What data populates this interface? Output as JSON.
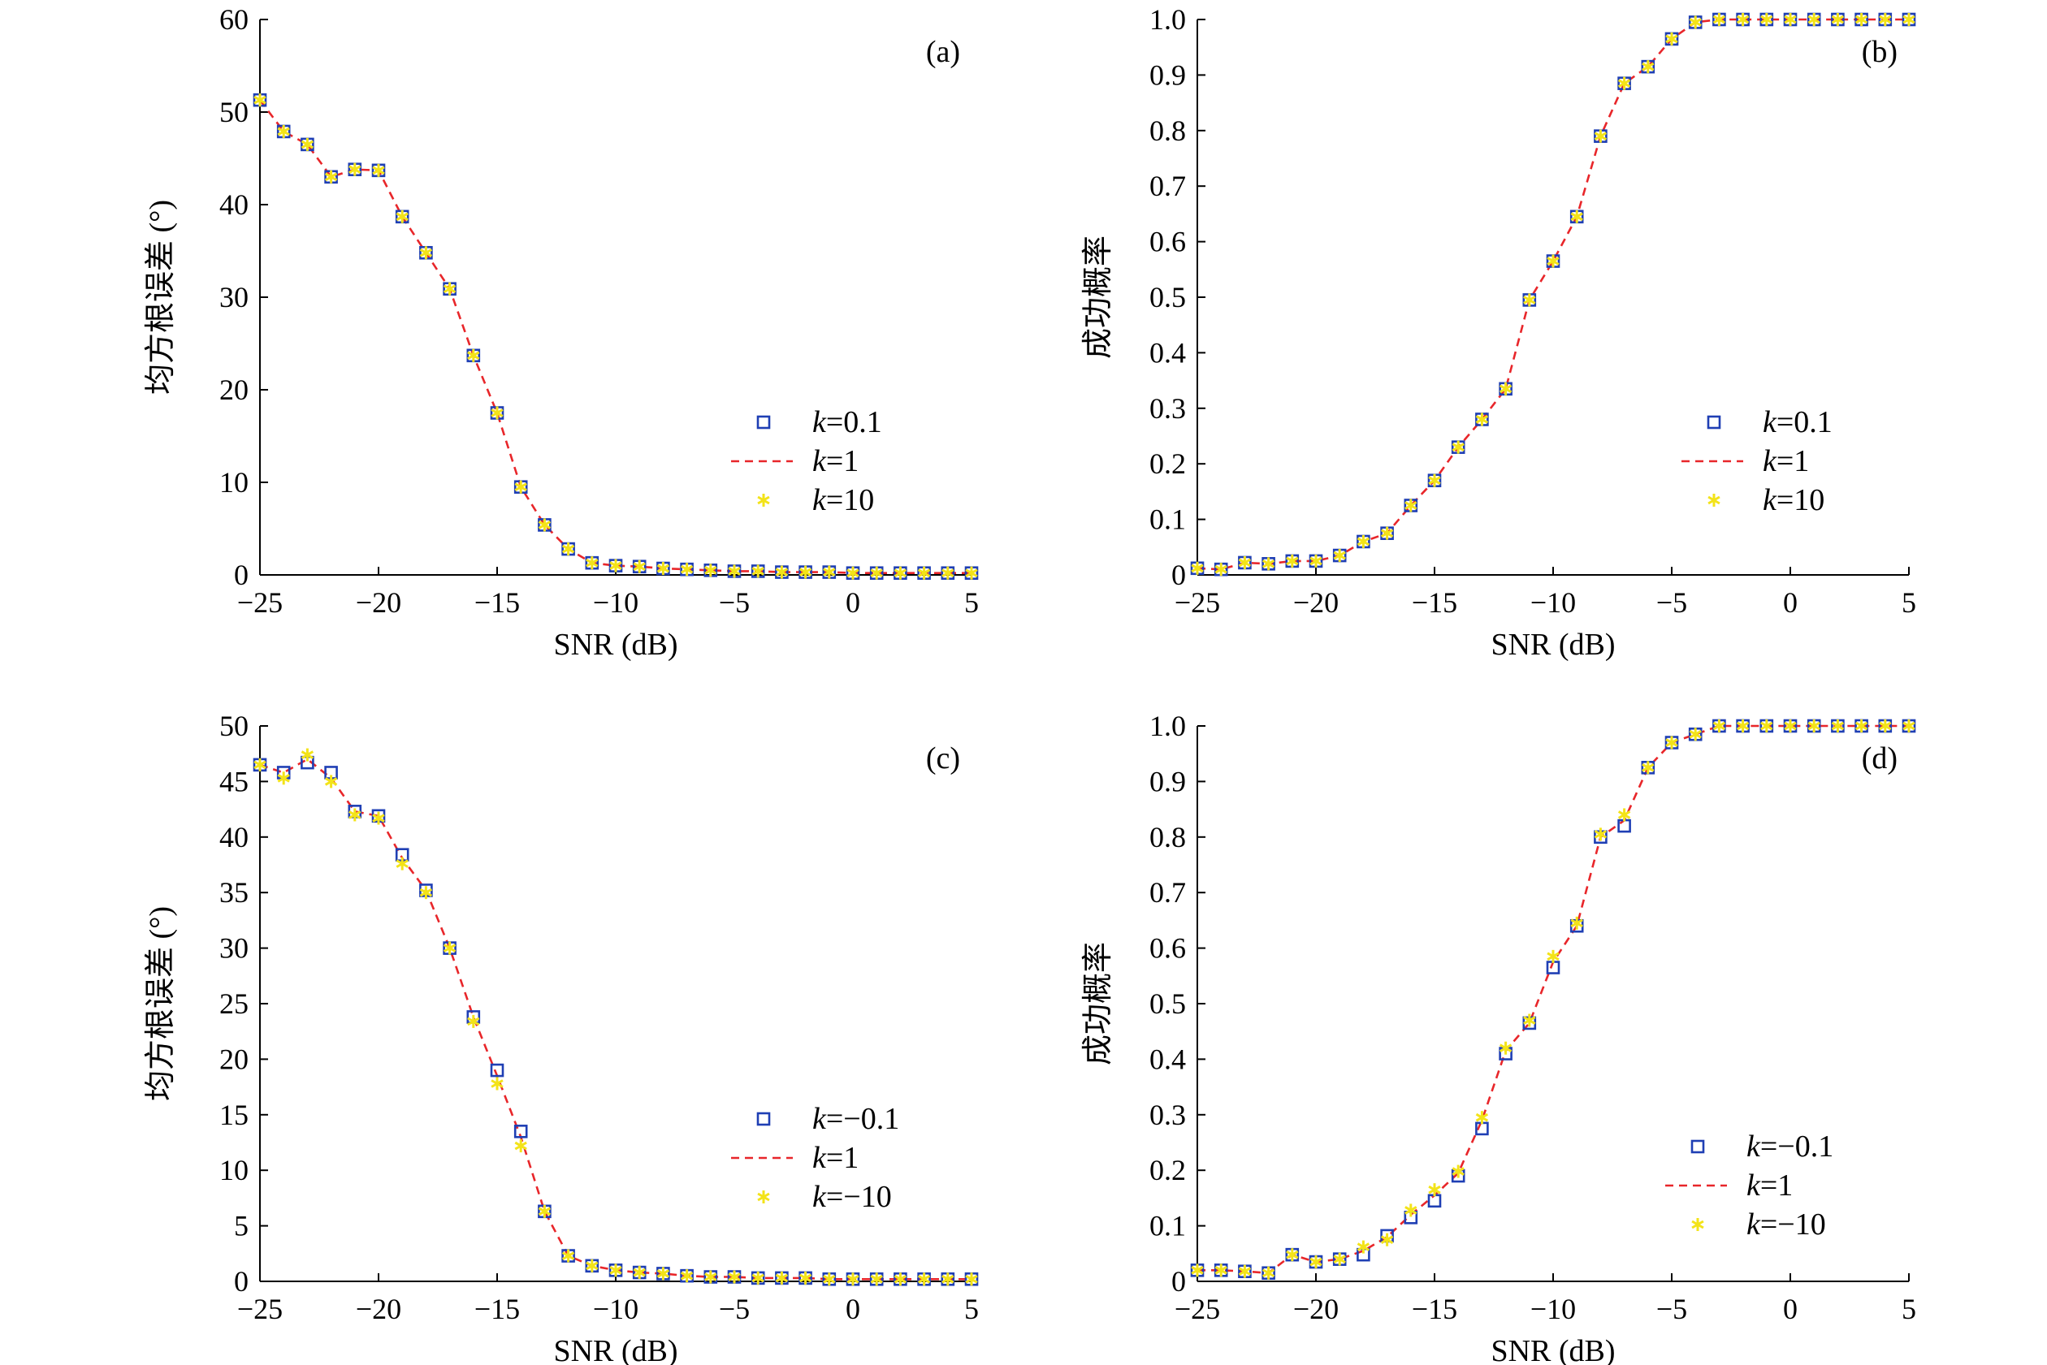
{
  "figure": {
    "background": "#ffffff",
    "colors": {
      "series_kpos01": "#1f3fb4",
      "series_k1": "#e8262a",
      "series_k10": "#f3e319",
      "axis": "#000000"
    }
  },
  "chart_data": [
    {
      "id": "a",
      "panel_label": "(a)",
      "type": "line",
      "xlabel": "SNR (dB)",
      "ylabel": "均方根误差 (°)",
      "xlim": [
        -25,
        5
      ],
      "ylim": [
        0,
        60
      ],
      "xticks": [
        -25,
        -20,
        -15,
        -10,
        -5,
        0,
        5
      ],
      "yticks": [
        0,
        10,
        20,
        30,
        40,
        50,
        60
      ],
      "xtick_labels": [
        "−25",
        "−20",
        "−15",
        "−10",
        "−5",
        "0",
        "5"
      ],
      "ytick_labels": [
        "0",
        "10",
        "20",
        "30",
        "40",
        "50",
        "60"
      ],
      "legend_position": "right",
      "x": [
        -25,
        -24,
        -23,
        -22,
        -21,
        -20,
        -19,
        -18,
        -17,
        -16,
        -15,
        -14,
        -13,
        -12,
        -11,
        -10,
        -9,
        -8,
        -7,
        -6,
        -5,
        -4,
        -3,
        -2,
        -1,
        0,
        1,
        2,
        3,
        4,
        5
      ],
      "series": [
        {
          "label_pre": "k",
          "label_post": "=0.1",
          "marker": "square",
          "color": "#1f3fb4",
          "values": [
            51.3,
            47.9,
            46.5,
            43.0,
            43.8,
            43.7,
            38.7,
            34.8,
            30.9,
            23.7,
            17.5,
            9.5,
            5.4,
            2.8,
            1.3,
            1.0,
            0.9,
            0.7,
            0.6,
            0.5,
            0.4,
            0.4,
            0.3,
            0.3,
            0.3,
            0.2,
            0.2,
            0.2,
            0.2,
            0.2,
            0.2
          ]
        },
        {
          "label_pre": "k",
          "label_post": "=1",
          "marker": "dashed-line",
          "color": "#e8262a",
          "values": [
            51.3,
            47.9,
            46.5,
            43.0,
            43.8,
            43.7,
            38.7,
            34.8,
            30.9,
            23.7,
            17.5,
            9.5,
            5.4,
            2.8,
            1.3,
            1.0,
            0.9,
            0.7,
            0.6,
            0.5,
            0.4,
            0.4,
            0.3,
            0.3,
            0.3,
            0.2,
            0.2,
            0.2,
            0.2,
            0.2,
            0.2
          ]
        },
        {
          "label_pre": "k",
          "label_post": "=10",
          "marker": "asterisk",
          "color": "#f3e319",
          "values": [
            51.3,
            47.9,
            46.5,
            43.0,
            43.8,
            43.7,
            38.7,
            34.8,
            30.9,
            23.7,
            17.5,
            9.5,
            5.4,
            2.8,
            1.3,
            1.0,
            0.9,
            0.7,
            0.6,
            0.5,
            0.4,
            0.4,
            0.3,
            0.3,
            0.3,
            0.2,
            0.2,
            0.2,
            0.2,
            0.2,
            0.2
          ]
        }
      ]
    },
    {
      "id": "b",
      "panel_label": "(b)",
      "type": "line",
      "xlabel": "SNR (dB)",
      "ylabel": "成功概率",
      "xlim": [
        -25,
        5
      ],
      "ylim": [
        0,
        1.0
      ],
      "xticks": [
        -25,
        -20,
        -15,
        -10,
        -5,
        0,
        5
      ],
      "yticks": [
        0,
        0.1,
        0.2,
        0.3,
        0.4,
        0.5,
        0.6,
        0.7,
        0.8,
        0.9,
        1.0
      ],
      "xtick_labels": [
        "−25",
        "−20",
        "−15",
        "−10",
        "−5",
        "0",
        "5"
      ],
      "ytick_labels": [
        "0",
        "0.1",
        "0.2",
        "0.3",
        "0.4",
        "0.5",
        "0.6",
        "0.7",
        "0.8",
        "0.9",
        "1.0"
      ],
      "legend_position": "right",
      "x": [
        -25,
        -24,
        -23,
        -22,
        -21,
        -20,
        -19,
        -18,
        -17,
        -16,
        -15,
        -14,
        -13,
        -12,
        -11,
        -10,
        -9,
        -8,
        -7,
        -6,
        -5,
        -4,
        -3,
        -2,
        -1,
        0,
        1,
        2,
        3,
        4,
        5
      ],
      "series": [
        {
          "label_pre": "k",
          "label_post": "=0.1",
          "marker": "square",
          "color": "#1f3fb4",
          "values": [
            0.012,
            0.01,
            0.022,
            0.02,
            0.025,
            0.025,
            0.035,
            0.06,
            0.075,
            0.125,
            0.17,
            0.23,
            0.28,
            0.335,
            0.495,
            0.565,
            0.645,
            0.79,
            0.885,
            0.915,
            0.965,
            0.995,
            1.0,
            1.0,
            1.0,
            1.0,
            1.0,
            1.0,
            1.0,
            1.0,
            1.0
          ]
        },
        {
          "label_pre": "k",
          "label_post": "=1",
          "marker": "dashed-line",
          "color": "#e8262a",
          "values": [
            0.012,
            0.01,
            0.022,
            0.02,
            0.025,
            0.025,
            0.035,
            0.06,
            0.075,
            0.125,
            0.17,
            0.23,
            0.28,
            0.335,
            0.495,
            0.565,
            0.645,
            0.79,
            0.885,
            0.915,
            0.965,
            0.995,
            1.0,
            1.0,
            1.0,
            1.0,
            1.0,
            1.0,
            1.0,
            1.0,
            1.0
          ]
        },
        {
          "label_pre": "k",
          "label_post": "=10",
          "marker": "asterisk",
          "color": "#f3e319",
          "values": [
            0.012,
            0.01,
            0.022,
            0.02,
            0.025,
            0.025,
            0.035,
            0.06,
            0.075,
            0.125,
            0.17,
            0.23,
            0.28,
            0.335,
            0.495,
            0.565,
            0.645,
            0.79,
            0.885,
            0.915,
            0.965,
            0.995,
            1.0,
            1.0,
            1.0,
            1.0,
            1.0,
            1.0,
            1.0,
            1.0,
            1.0
          ]
        }
      ]
    },
    {
      "id": "c",
      "panel_label": "(c)",
      "type": "line",
      "xlabel": "SNR (dB)",
      "ylabel": "均方根误差 (°)",
      "xlim": [
        -25,
        5
      ],
      "ylim": [
        0,
        50
      ],
      "xticks": [
        -25,
        -20,
        -15,
        -10,
        -5,
        0,
        5
      ],
      "yticks": [
        0,
        5,
        10,
        15,
        20,
        25,
        30,
        35,
        40,
        45,
        50
      ],
      "xtick_labels": [
        "−25",
        "−20",
        "−15",
        "−10",
        "−5",
        "0",
        "5"
      ],
      "ytick_labels": [
        "0",
        "5",
        "10",
        "15",
        "20",
        "25",
        "30",
        "35",
        "40",
        "45",
        "50"
      ],
      "legend_position": "right",
      "x": [
        -25,
        -24,
        -23,
        -22,
        -21,
        -20,
        -19,
        -18,
        -17,
        -16,
        -15,
        -14,
        -13,
        -12,
        -11,
        -10,
        -9,
        -8,
        -7,
        -6,
        -5,
        -4,
        -3,
        -2,
        -1,
        0,
        1,
        2,
        3,
        4,
        5
      ],
      "series": [
        {
          "label_pre": "k",
          "label_post": "=−0.1",
          "marker": "square",
          "color": "#1f3fb4",
          "values": [
            46.5,
            45.8,
            46.7,
            45.8,
            42.3,
            41.9,
            38.4,
            35.2,
            30.0,
            23.8,
            19.0,
            13.5,
            6.3,
            2.3,
            1.4,
            1.0,
            0.8,
            0.7,
            0.5,
            0.4,
            0.4,
            0.3,
            0.3,
            0.3,
            0.2,
            0.2,
            0.2,
            0.2,
            0.2,
            0.2,
            0.2
          ]
        },
        {
          "label_pre": "k",
          "label_post": "=1",
          "marker": "dashed-line",
          "color": "#e8262a",
          "values": [
            46.5,
            45.8,
            47.0,
            45.3,
            42.3,
            41.9,
            38.1,
            35.2,
            30.0,
            23.8,
            18.5,
            13.0,
            6.3,
            2.3,
            1.4,
            1.0,
            0.8,
            0.7,
            0.5,
            0.4,
            0.4,
            0.3,
            0.3,
            0.3,
            0.2,
            0.2,
            0.2,
            0.2,
            0.2,
            0.2,
            0.2
          ]
        },
        {
          "label_pre": "k",
          "label_post": "=−10",
          "marker": "asterisk",
          "color": "#f3e319",
          "values": [
            46.5,
            45.3,
            47.4,
            45.0,
            42.0,
            41.7,
            37.6,
            35.0,
            30.0,
            23.4,
            17.8,
            12.2,
            6.3,
            2.3,
            1.4,
            1.0,
            0.8,
            0.7,
            0.5,
            0.4,
            0.4,
            0.3,
            0.3,
            0.3,
            0.2,
            0.2,
            0.2,
            0.2,
            0.2,
            0.2,
            0.2
          ]
        }
      ]
    },
    {
      "id": "d",
      "panel_label": "(d)",
      "type": "line",
      "xlabel": "SNR (dB)",
      "ylabel": "成功概率",
      "xlim": [
        -25,
        5
      ],
      "ylim": [
        0,
        1.0
      ],
      "xticks": [
        -25,
        -20,
        -15,
        -10,
        -5,
        0,
        5
      ],
      "yticks": [
        0,
        0.1,
        0.2,
        0.3,
        0.4,
        0.5,
        0.6,
        0.7,
        0.8,
        0.9,
        1.0
      ],
      "xtick_labels": [
        "−25",
        "−20",
        "−15",
        "−10",
        "−5",
        "0",
        "5"
      ],
      "ytick_labels": [
        "0",
        "0.1",
        "0.2",
        "0.3",
        "0.4",
        "0.5",
        "0.6",
        "0.7",
        "0.8",
        "0.9",
        "1.0"
      ],
      "legend_position": "right",
      "x": [
        -25,
        -24,
        -23,
        -22,
        -21,
        -20,
        -19,
        -18,
        -17,
        -16,
        -15,
        -14,
        -13,
        -12,
        -11,
        -10,
        -9,
        -8,
        -7,
        -6,
        -5,
        -4,
        -3,
        -2,
        -1,
        0,
        1,
        2,
        3,
        4,
        5
      ],
      "series": [
        {
          "label_pre": "k",
          "label_post": "=−0.1",
          "marker": "square",
          "color": "#1f3fb4",
          "values": [
            0.02,
            0.02,
            0.018,
            0.015,
            0.048,
            0.035,
            0.04,
            0.048,
            0.082,
            0.115,
            0.145,
            0.19,
            0.275,
            0.41,
            0.465,
            0.565,
            0.64,
            0.8,
            0.82,
            0.925,
            0.97,
            0.985,
            1.0,
            1.0,
            1.0,
            1.0,
            1.0,
            1.0,
            1.0,
            1.0,
            1.0
          ]
        },
        {
          "label_pre": "k",
          "label_post": "=1",
          "marker": "dashed-line",
          "color": "#e8262a",
          "values": [
            0.02,
            0.02,
            0.018,
            0.015,
            0.048,
            0.035,
            0.04,
            0.055,
            0.08,
            0.12,
            0.155,
            0.195,
            0.29,
            0.415,
            0.465,
            0.575,
            0.64,
            0.8,
            0.83,
            0.925,
            0.97,
            0.985,
            1.0,
            1.0,
            1.0,
            1.0,
            1.0,
            1.0,
            1.0,
            1.0,
            1.0
          ]
        },
        {
          "label_pre": "k",
          "label_post": "=−10",
          "marker": "asterisk",
          "color": "#f3e319",
          "values": [
            0.02,
            0.02,
            0.018,
            0.015,
            0.048,
            0.035,
            0.04,
            0.062,
            0.075,
            0.128,
            0.165,
            0.198,
            0.295,
            0.42,
            0.47,
            0.585,
            0.645,
            0.805,
            0.84,
            0.925,
            0.97,
            0.985,
            1.0,
            1.0,
            1.0,
            1.0,
            1.0,
            1.0,
            1.0,
            1.0,
            1.0
          ]
        }
      ]
    }
  ]
}
